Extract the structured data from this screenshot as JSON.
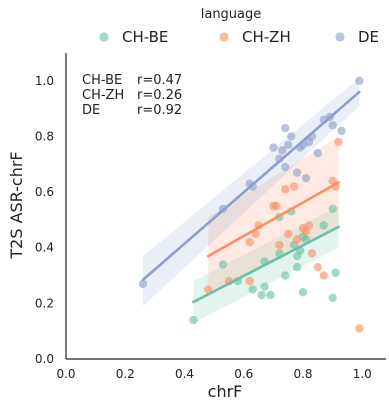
{
  "chart_data": {
    "type": "scatter",
    "xlabel": "chrF",
    "ylabel": "T2S ASR-chrF",
    "xlim": [
      0.0,
      1.08
    ],
    "ylim": [
      0.0,
      1.1
    ],
    "xticks": [
      "0.0",
      "0.2",
      "0.4",
      "0.6",
      "0.8",
      "1.0"
    ],
    "yticks": [
      "0.0",
      "0.2",
      "0.4",
      "0.6",
      "0.8",
      "1.0"
    ],
    "grid": false,
    "legend": {
      "title": "language",
      "placement": "top",
      "entries": [
        "CH-BE",
        "CH-ZH",
        "DE"
      ]
    },
    "annotations": [
      {
        "label": "CH-BE",
        "value": "r=0.47"
      },
      {
        "label": "CH-ZH",
        "value": "r=0.26"
      },
      {
        "label": "DE",
        "value": "r=0.92"
      }
    ],
    "series": [
      {
        "name": "CH-BE",
        "color": "#66c2a5",
        "points": [
          [
            0.43,
            0.14
          ],
          [
            0.58,
            0.28
          ],
          [
            0.63,
            0.25
          ],
          [
            0.66,
            0.23
          ],
          [
            0.67,
            0.35
          ],
          [
            0.67,
            0.26
          ],
          [
            0.69,
            0.23
          ],
          [
            0.72,
            0.38
          ],
          [
            0.72,
            0.51
          ],
          [
            0.74,
            0.3
          ],
          [
            0.76,
            0.53
          ],
          [
            0.77,
            0.41
          ],
          [
            0.78,
            0.37
          ],
          [
            0.78,
            0.33
          ],
          [
            0.79,
            0.39
          ],
          [
            0.8,
            0.44
          ],
          [
            0.8,
            0.24
          ],
          [
            0.81,
            0.43
          ],
          [
            0.87,
            0.48
          ],
          [
            0.9,
            0.54
          ],
          [
            0.9,
            0.22
          ],
          [
            0.91,
            0.31
          ],
          [
            0.53,
            0.34
          ]
        ],
        "fit": {
          "x": [
            0.43,
            0.92
          ],
          "y": [
            0.205,
            0.475
          ],
          "ci_low": [
            0.13,
            0.4
          ],
          "ci_high": [
            0.28,
            0.55
          ]
        }
      },
      {
        "name": "CH-ZH",
        "color": "#fc8d62",
        "points": [
          [
            0.48,
            0.25
          ],
          [
            0.55,
            0.28
          ],
          [
            0.62,
            0.42
          ],
          [
            0.64,
            0.45
          ],
          [
            0.65,
            0.48
          ],
          [
            0.71,
            0.55
          ],
          [
            0.72,
            0.41
          ],
          [
            0.74,
            0.61
          ],
          [
            0.75,
            0.45
          ],
          [
            0.77,
            0.62
          ],
          [
            0.8,
            0.47
          ],
          [
            0.81,
            0.46
          ],
          [
            0.82,
            0.48
          ],
          [
            0.83,
            0.38
          ],
          [
            0.85,
            0.33
          ],
          [
            0.87,
            0.3
          ],
          [
            0.9,
            0.64
          ],
          [
            0.91,
            0.62
          ],
          [
            0.92,
            0.78
          ],
          [
            0.99,
            0.11
          ],
          [
            0.62,
            0.28
          ],
          [
            0.7,
            0.55
          ],
          [
            0.78,
            0.43
          ]
        ],
        "fit": {
          "x": [
            0.48,
            0.92
          ],
          "y": [
            0.37,
            0.635
          ],
          "ci_low": [
            0.23,
            0.48
          ],
          "ci_high": [
            0.51,
            0.8
          ]
        }
      },
      {
        "name": "DE",
        "color": "#8da0cb",
        "points": [
          [
            0.26,
            0.27
          ],
          [
            0.53,
            0.54
          ],
          [
            0.62,
            0.63
          ],
          [
            0.63,
            0.62
          ],
          [
            0.7,
            0.76
          ],
          [
            0.72,
            0.72
          ],
          [
            0.73,
            0.75
          ],
          [
            0.74,
            0.69
          ],
          [
            0.74,
            0.83
          ],
          [
            0.75,
            0.77
          ],
          [
            0.76,
            0.8
          ],
          [
            0.78,
            0.67
          ],
          [
            0.79,
            0.76
          ],
          [
            0.8,
            0.77
          ],
          [
            0.81,
            0.65
          ],
          [
            0.82,
            0.78
          ],
          [
            0.83,
            0.8
          ],
          [
            0.85,
            0.74
          ],
          [
            0.87,
            0.86
          ],
          [
            0.89,
            0.87
          ],
          [
            0.9,
            0.84
          ],
          [
            0.93,
            0.82
          ],
          [
            0.99,
            1.0
          ]
        ],
        "fit": {
          "x": [
            0.26,
            0.99
          ],
          "y": [
            0.285,
            0.96
          ],
          "ci_low": [
            0.19,
            0.91
          ],
          "ci_high": [
            0.37,
            1.01
          ]
        }
      }
    ]
  }
}
